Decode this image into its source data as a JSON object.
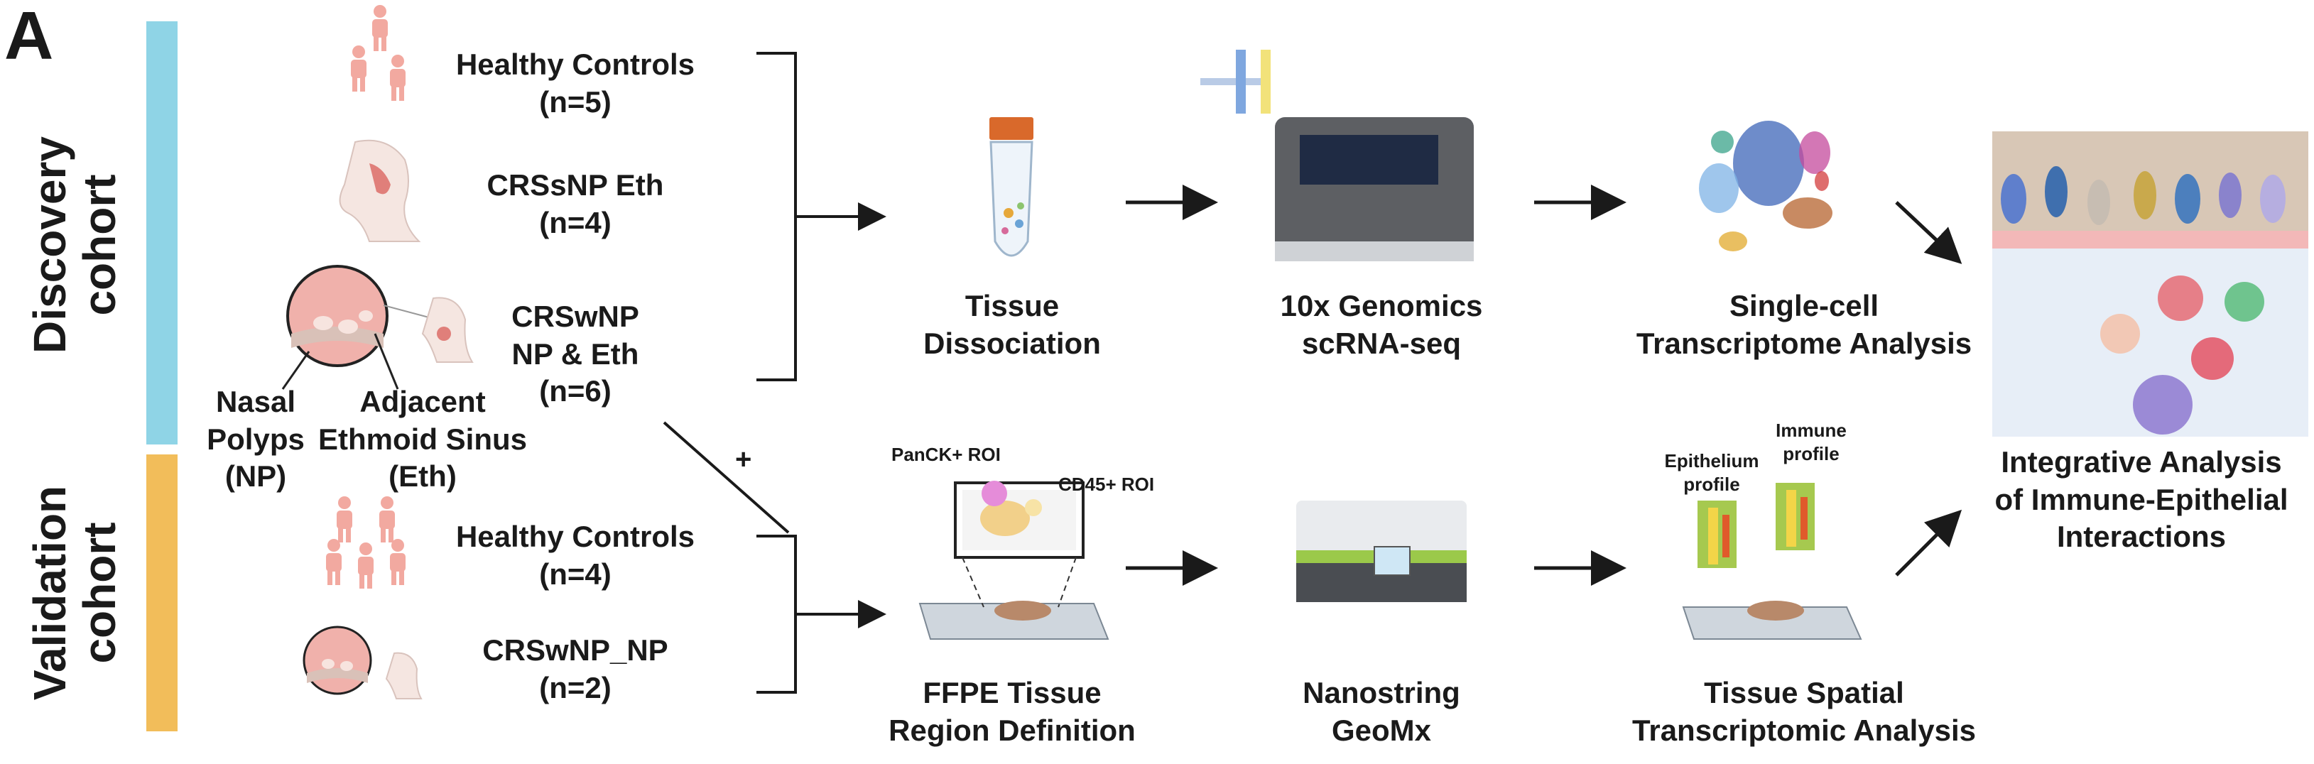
{
  "panel_letter": "A",
  "cohorts": {
    "discovery": {
      "line1": "Discovery",
      "line2": "cohort",
      "color": "#8fd4e6"
    },
    "validation": {
      "line1": "Validation",
      "line2": "cohort",
      "color": "#f2bd5a"
    }
  },
  "discovery_groups": [
    {
      "name": "Healthy Controls",
      "n": "(n=5)"
    },
    {
      "name": "CRSsNP Eth",
      "n": "(n=4)"
    },
    {
      "name_line1": "CRSwNP",
      "name_line2": "NP & Eth",
      "n": "(n=6)"
    }
  ],
  "anatomy_labels": {
    "nasal": [
      "Nasal",
      "Polyps",
      "(NP)"
    ],
    "adjacent": [
      "Adjacent",
      "Ethmoid Sinus",
      "(Eth)"
    ]
  },
  "validation_groups": [
    {
      "name": "Healthy Controls",
      "n": "(n=4)"
    },
    {
      "name": "CRSwNP_NP",
      "n": "(n=2)"
    }
  ],
  "plus_sign": "+",
  "workflow_top": [
    {
      "line1": "Tissue",
      "line2": "Dissociation"
    },
    {
      "line1": "10x Genomics",
      "line2": "scRNA-seq"
    },
    {
      "line1": "Single-cell",
      "line2": "Transcriptome Analysis"
    }
  ],
  "workflow_bottom": [
    {
      "line1": "FFPE Tissue",
      "line2": "Region Definition"
    },
    {
      "line1": "Nanostring",
      "line2": "GeoMx"
    },
    {
      "line1": "Tissue Spatial",
      "line2": "Transcriptomic Analysis"
    }
  ],
  "roi_labels": {
    "pan": "PanCK+ ROI",
    "cd45": "CD45+ ROI"
  },
  "profile_labels": {
    "epi": [
      "Epithelium",
      "profile"
    ],
    "imm": [
      "Immune",
      "profile"
    ]
  },
  "final": [
    "Integrative Analysis",
    "of Immune-Epithelial",
    "Interactions"
  ]
}
